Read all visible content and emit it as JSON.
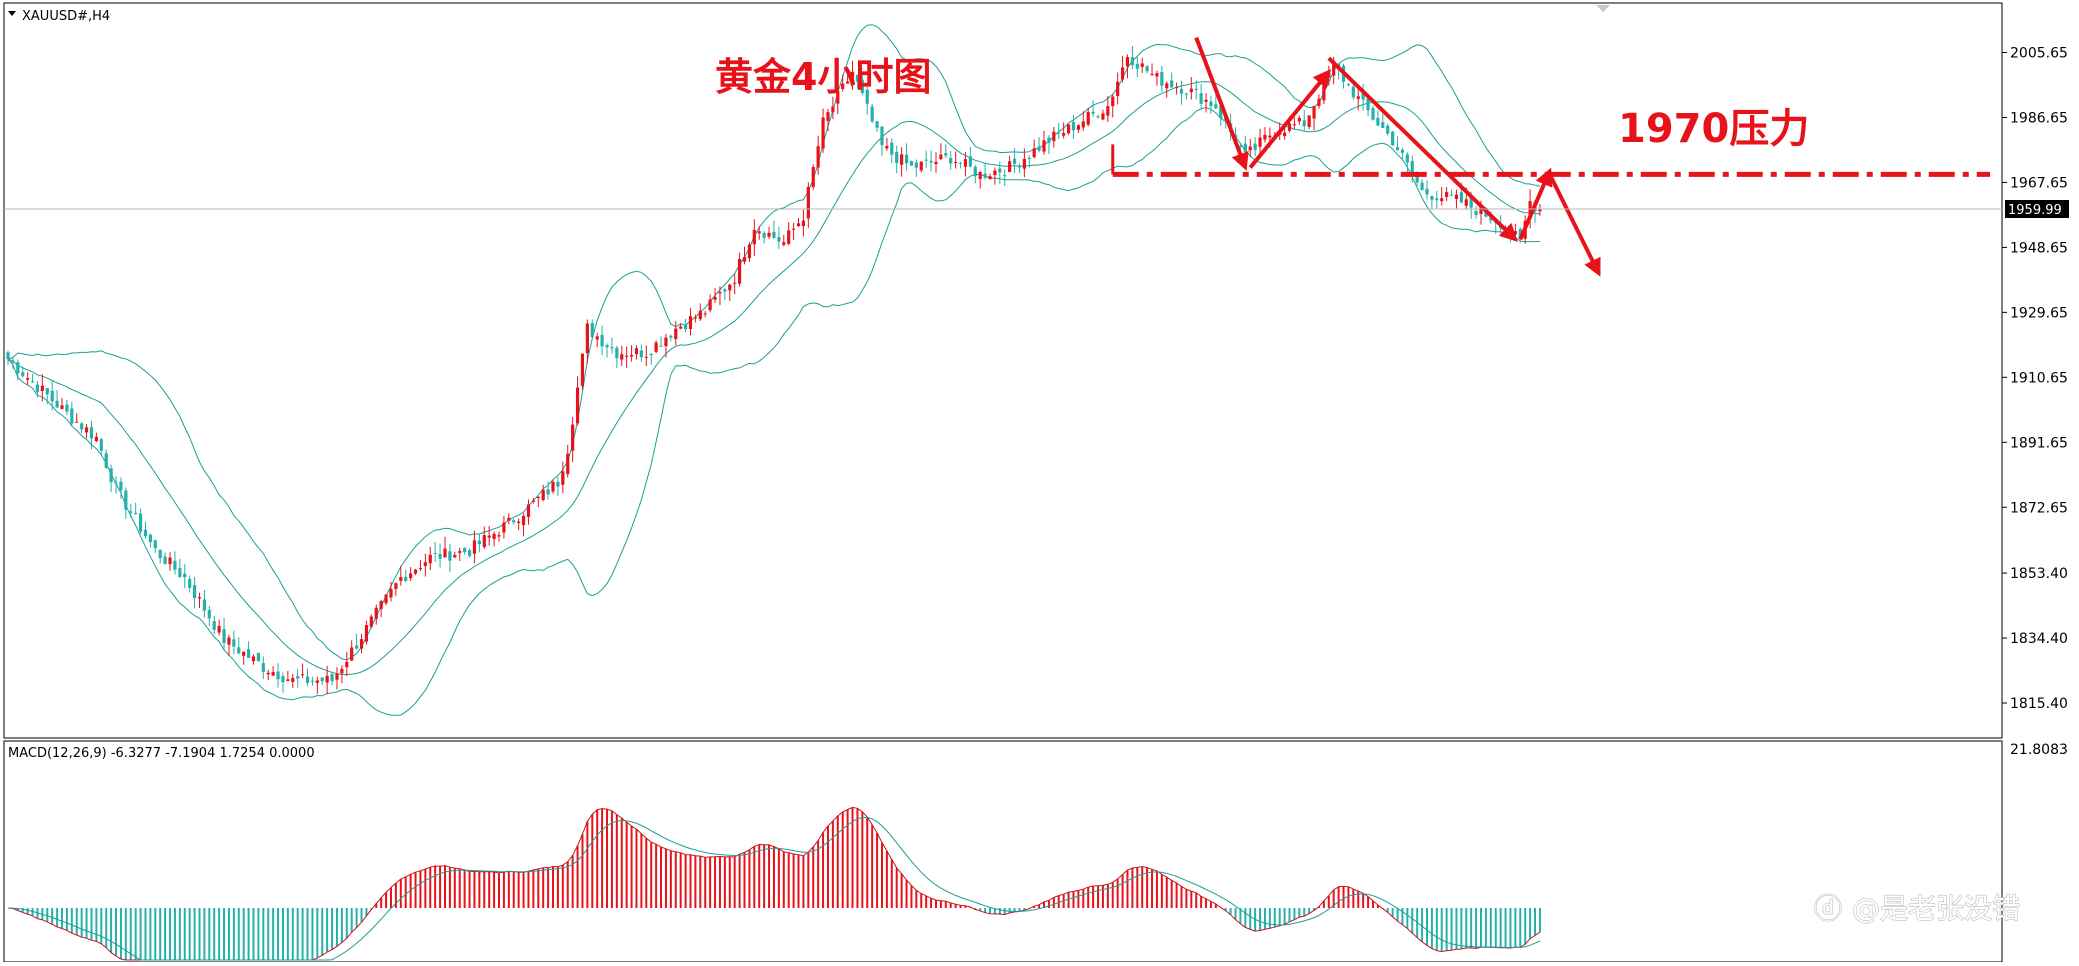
{
  "main_panel": {
    "symbol_label": "XAUUSD#,H4",
    "current_price_label": "1959.99",
    "current_price": 1959.99
  },
  "macd_panel": {
    "label": "MACD(12,26,9) -6.3277 -7.1904 1.7254 0.0000",
    "top_value_label": "21.8083"
  },
  "annotations": {
    "title": "黄金4小时图",
    "resistance_label": "1970压力"
  },
  "watermark": "@是老张没错",
  "colors": {
    "bull_candle": "#e8121a",
    "bear_candle": "#26b0aa",
    "bollinger": "#1b9e96",
    "annotation": "#e8121a",
    "macd_line": "#c8171e",
    "signal_line": "#1b9e96"
  },
  "chart_data": [
    {
      "type": "candlestick",
      "indicator": "Bollinger Bands",
      "ylim": [
        1805,
        2020
      ],
      "yticks": [
        "2005.65",
        "1986.65",
        "1967.65",
        "1948.65",
        "1929.65",
        "1910.65",
        "1891.65",
        "1872.65",
        "1853.40",
        "1834.40",
        "1815.40"
      ],
      "last_price": 1959.99,
      "resistance_level": 1970,
      "close_path": [
        [
          0,
          1916
        ],
        [
          12,
          1900
        ],
        [
          18,
          1893
        ],
        [
          22,
          1878
        ],
        [
          30,
          1860
        ],
        [
          36,
          1852
        ],
        [
          44,
          1834
        ],
        [
          52,
          1826
        ],
        [
          58,
          1822
        ],
        [
          66,
          1822
        ],
        [
          72,
          1835
        ],
        [
          80,
          1852
        ],
        [
          86,
          1858
        ],
        [
          94,
          1860
        ],
        [
          102,
          1868
        ],
        [
          108,
          1875
        ],
        [
          112,
          1880
        ],
        [
          114,
          1890
        ],
        [
          118,
          1925
        ],
        [
          124,
          1918
        ],
        [
          130,
          1918
        ],
        [
          136,
          1925
        ],
        [
          142,
          1930
        ],
        [
          148,
          1940
        ],
        [
          152,
          1955
        ],
        [
          158,
          1950
        ],
        [
          162,
          1958
        ],
        [
          166,
          1985
        ],
        [
          172,
          2000
        ],
        [
          178,
          1978
        ],
        [
          184,
          1972
        ],
        [
          192,
          1975
        ],
        [
          198,
          1970
        ],
        [
          204,
          1972
        ],
        [
          212,
          1980
        ],
        [
          218,
          1985
        ],
        [
          224,
          1990
        ],
        [
          228,
          2005
        ],
        [
          234,
          1998
        ],
        [
          240,
          1995
        ],
        [
          246,
          1990
        ],
        [
          252,
          1975
        ],
        [
          258,
          1983
        ],
        [
          264,
          1985
        ],
        [
          270,
          2002
        ],
        [
          276,
          1990
        ],
        [
          282,
          1980
        ],
        [
          288,
          1965
        ],
        [
          296,
          1962
        ],
        [
          304,
          1956
        ],
        [
          308,
          1950
        ],
        [
          310,
          1962
        ],
        [
          312,
          1960
        ]
      ],
      "annotation_arrows": [
        {
          "from_bar": 242,
          "from_price": 2010,
          "to_bar": 252,
          "to_price": 1972
        },
        {
          "from_bar": 253,
          "from_price": 1972,
          "to_bar": 269,
          "to_price": 2000
        },
        {
          "from_bar": 269,
          "from_price": 2004,
          "to_bar": 307,
          "to_price": 1951
        },
        {
          "from_bar": 308,
          "from_price": 1951,
          "to_bar": 314,
          "to_price": 1971
        },
        {
          "from_bar": 314,
          "from_price": 1970,
          "to_bar": 324,
          "to_price": 1941
        }
      ]
    },
    {
      "type": "macd",
      "params": [
        12,
        26,
        9
      ],
      "macd": -6.3277,
      "signal": -7.1904,
      "histogram": 1.7254,
      "top_value": 21.8083
    }
  ]
}
